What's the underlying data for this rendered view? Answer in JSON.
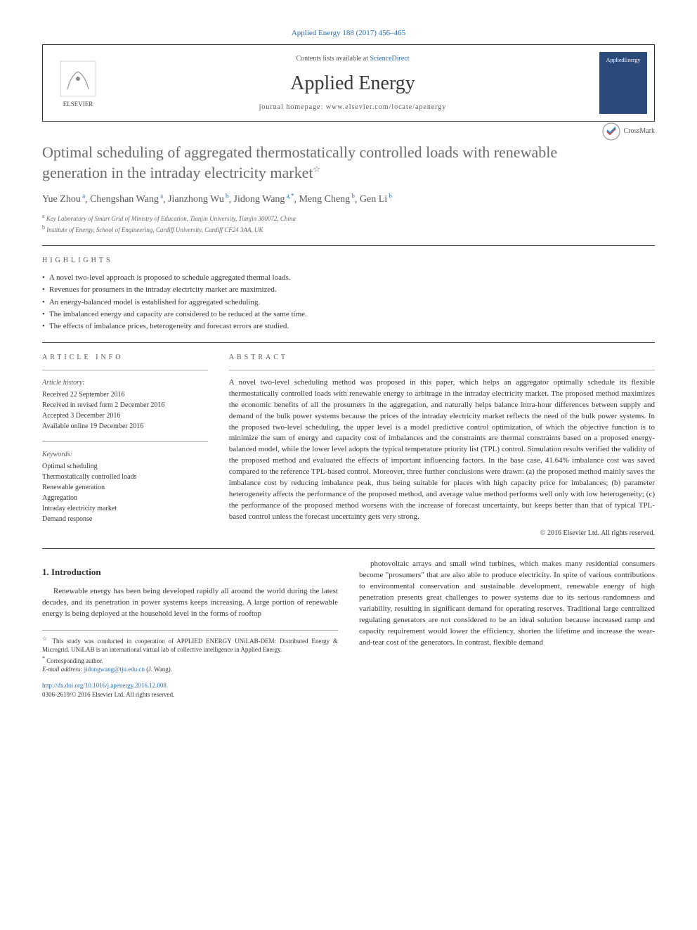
{
  "journal_ref": "Applied Energy 188 (2017) 456–465",
  "header": {
    "elsevier": "ELSEVIER",
    "contents_prefix": "Contents lists available at ",
    "contents_link": "ScienceDirect",
    "journal_name": "Applied Energy",
    "homepage_prefix": "journal homepage: ",
    "homepage_url": "www.elsevier.com/locate/apenergy",
    "cover_label": "AppliedEnergy"
  },
  "crossmark_label": "CrossMark",
  "title": "Optimal scheduling of aggregated thermostatically controlled loads with renewable generation in the intraday electricity market",
  "title_star": "☆",
  "authors": [
    {
      "name": "Yue Zhou",
      "aff": "a"
    },
    {
      "name": "Chengshan Wang",
      "aff": "a"
    },
    {
      "name": "Jianzhong Wu",
      "aff": "b"
    },
    {
      "name": "Jidong Wang",
      "aff": "a,*"
    },
    {
      "name": "Meng Cheng",
      "aff": "b"
    },
    {
      "name": "Gen Li",
      "aff": "b"
    }
  ],
  "affiliations": [
    {
      "sup": "a",
      "text": "Key Laboratory of Smart Grid of Ministry of Education, Tianjin University, Tianjin 300072, China"
    },
    {
      "sup": "b",
      "text": "Institute of Energy, School of Engineering, Cardiff University, Cardiff CF24 3AA, UK"
    }
  ],
  "highlights_label": "HIGHLIGHTS",
  "highlights": [
    "A novel two-level approach is proposed to schedule aggregated thermal loads.",
    "Revenues for prosumers in the intraday electricity market are maximized.",
    "An energy-balanced model is established for aggregated scheduling.",
    "The imbalanced energy and capacity are considered to be reduced at the same time.",
    "The effects of imbalance prices, heterogeneity and forecast errors are studied."
  ],
  "article_info_label": "ARTICLE INFO",
  "abstract_label": "ABSTRACT",
  "article_history_head": "Article history:",
  "article_history": [
    "Received 22 September 2016",
    "Received in revised form 2 December 2016",
    "Accepted 3 December 2016",
    "Available online 19 December 2016"
  ],
  "keywords_head": "Keywords:",
  "keywords": [
    "Optimal scheduling",
    "Thermostatically controlled loads",
    "Renewable generation",
    "Aggregation",
    "Intraday electricity market",
    "Demand response"
  ],
  "abstract": "A novel two-level scheduling method was proposed in this paper, which helps an aggregator optimally schedule its flexible thermostatically controlled loads with renewable energy to arbitrage in the intraday electricity market. The proposed method maximizes the economic benefits of all the prosumers in the aggregation, and naturally helps balance intra-hour differences between supply and demand of the bulk power systems because the prices of the intraday electricity market reflects the need of the bulk power systems. In the proposed two-level scheduling, the upper level is a model predictive control optimization, of which the objective function is to minimize the sum of energy and capacity cost of imbalances and the constraints are thermal constraints based on a proposed energy-balanced model, while the lower level adopts the typical temperature priority list (TPL) control. Simulation results verified the validity of the proposed method and evaluated the effects of important influencing factors. In the base case, 41.64% imbalance cost was saved compared to the reference TPL-based control. Moreover, three further conclusions were drawn: (a) the proposed method mainly saves the imbalance cost by reducing imbalance peak, thus being suitable for places with high capacity price for imbalances; (b) parameter heterogeneity affects the performance of the proposed method, and average value method performs well only with low heterogeneity; (c) the performance of the proposed method worsens with the increase of forecast uncertainty, but keeps better than that of typical TPL-based control unless the forecast uncertainty gets very strong.",
  "copyright": "© 2016 Elsevier Ltd. All rights reserved.",
  "intro_heading": "1. Introduction",
  "intro_col1": "Renewable energy has been being developed rapidly all around the world during the latest decades, and its penetration in power systems keeps increasing. A large portion of renewable energy is being deployed at the household level in the forms of rooftop",
  "intro_col2": "photovoltaic arrays and small wind turbines, which makes many residential consumers become \"prosumers\" that are also able to produce electricity. In spite of various contributions to environmental conservation and sustainable development, renewable energy of high penetration presents great challenges to power systems due to its serious randomness and variability, resulting in significant demand for operating reserves. Traditional large centralized regulating generators are not considered to be an ideal solution because increased ramp and capacity requirement would lower the efficiency, shorten the lifetime and increase the wear-and-tear cost of the generators. In contrast, flexible demand",
  "footnote_star": "This study was conducted in cooperation of APPLIED ENERGY UNiLAB-DEM: Distributed Energy & Microgrid. UNiLAB is an international virtual lab of collective intelligence in Applied Energy.",
  "corr_author_label": "Corresponding author.",
  "email_label": "E-mail address:",
  "email": "jidongwang@tju.edu.cn",
  "email_person": "(J. Wang).",
  "doi": "http://dx.doi.org/10.1016/j.apenergy.2016.12.008",
  "issn_line": "0306-2619/© 2016 Elsevier Ltd. All rights reserved.",
  "colors": {
    "link": "#2b6cb0",
    "title_gray": "#6a6a6a",
    "text": "#333333",
    "cover_bg": "#2b4a7a"
  }
}
